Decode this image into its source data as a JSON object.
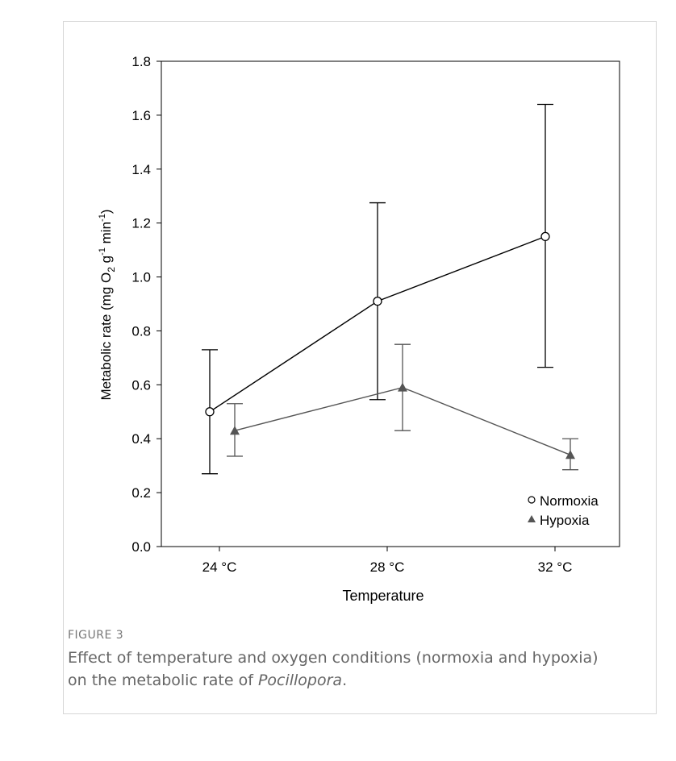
{
  "figure": {
    "label": "FIGURE 3",
    "caption_pre": "Effect of temperature and oxygen conditions (normoxia and hypoxia) on the metabolic rate of ",
    "caption_italic": "Pocillopora",
    "caption_post": "."
  },
  "chart_data": {
    "type": "line",
    "categories": [
      "24 °C",
      "28 °C",
      "32 °C"
    ],
    "xlabel": "Temperature",
    "ylabel_parts": {
      "a": "Metabolic rate (mg O",
      "sub": "2",
      "b": " g",
      "sup1": "-1",
      "c": " min",
      "sup2": "-1",
      "d": ")"
    },
    "ylim": [
      0.0,
      1.8
    ],
    "yticks": [
      "0.0",
      "0.2",
      "0.4",
      "0.6",
      "0.8",
      "1.0",
      "1.2",
      "1.4",
      "1.6",
      "1.8"
    ],
    "grid": false,
    "legend_position": "bottom-right",
    "series": [
      {
        "name": "Normoxia",
        "marker": "open-circle",
        "color": "#000000",
        "values": [
          0.5,
          0.91,
          1.15
        ],
        "error_low": [
          0.27,
          0.545,
          0.665
        ],
        "error_high": [
          0.73,
          1.275,
          1.64
        ]
      },
      {
        "name": "Hypoxia",
        "marker": "filled-triangle",
        "color": "#555555",
        "values": [
          0.43,
          0.59,
          0.34
        ],
        "error_low": [
          0.335,
          0.43,
          0.285
        ],
        "error_high": [
          0.53,
          0.75,
          0.4
        ]
      }
    ]
  }
}
